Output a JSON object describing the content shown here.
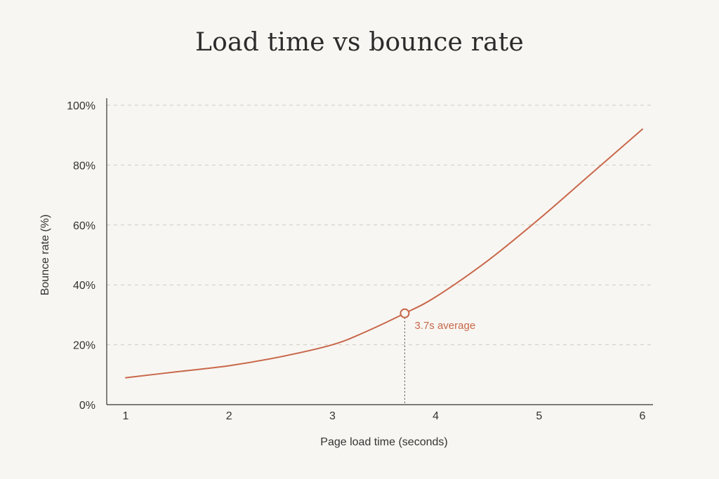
{
  "chart_data": {
    "type": "line",
    "title": "Load time vs bounce rate",
    "xlabel": "Page load time (seconds)",
    "ylabel": "Bounce rate (%)",
    "xlim": [
      1,
      6
    ],
    "ylim": [
      0,
      100
    ],
    "x_ticks": [
      "1",
      "2",
      "3",
      "4",
      "5",
      "6"
    ],
    "y_ticks": [
      "0%",
      "20%",
      "40%",
      "60%",
      "80%",
      "100%"
    ],
    "grid": "horizontal dashed",
    "series": [
      {
        "color": "#c8674a",
        "x": [
          1.0,
          1.5,
          2.0,
          2.5,
          3.0,
          3.3,
          3.7,
          4.0,
          4.5,
          5.0,
          5.5,
          6.0
        ],
        "y": [
          9,
          11,
          13,
          16,
          20,
          24,
          30.5,
          36,
          48,
          62,
          77,
          92
        ]
      }
    ],
    "annotation": {
      "x": 3.7,
      "y": 30.5,
      "label": "3.7s average",
      "color": "#c8674a"
    }
  }
}
